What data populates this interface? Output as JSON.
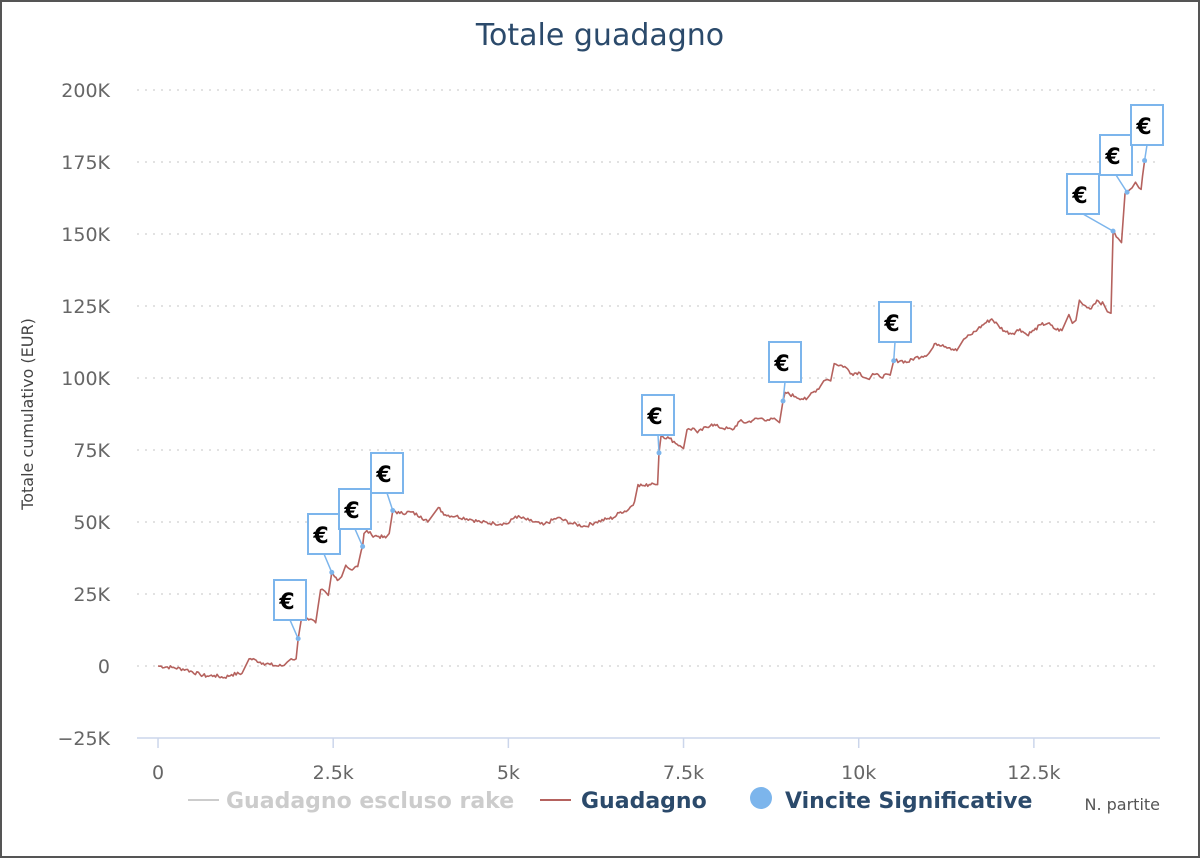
{
  "chart_data": {
    "type": "line",
    "title": "Totale guadagno",
    "xlabel": "N. partite",
    "ylabel": "Totale cumulativo (EUR)",
    "xlim": [
      -300,
      14300
    ],
    "ylim": [
      -25000,
      200000
    ],
    "x_ticks": [
      0,
      2500,
      5000,
      7500,
      10000,
      12500
    ],
    "x_tick_labels": [
      "0",
      "2.5k",
      "5k",
      "7.5k",
      "10k",
      "12.5k"
    ],
    "y_ticks": [
      -25000,
      0,
      25000,
      50000,
      75000,
      100000,
      125000,
      150000,
      175000,
      200000
    ],
    "y_tick_labels": [
      "−25K",
      "0",
      "25K",
      "50K",
      "75K",
      "100K",
      "125K",
      "150K",
      "175K",
      "200K"
    ],
    "grid": true,
    "legend_position": "bottom",
    "colors": {
      "guadagno": "#b5625e",
      "escluso_rake": "#cccccc",
      "vincite": "#7cb5ec",
      "title": "#2b4a6b",
      "legend_text": "#2b4a6b",
      "legend_hidden": "#cccccc"
    },
    "series": [
      {
        "name": "Guadagno escluso rake",
        "hidden": true,
        "points": []
      },
      {
        "name": "Guadagno",
        "points": [
          [
            0,
            0
          ],
          [
            200,
            -500
          ],
          [
            400,
            -1200
          ],
          [
            600,
            -3000
          ],
          [
            700,
            -3500
          ],
          [
            800,
            -3300
          ],
          [
            950,
            -4000
          ],
          [
            1050,
            -3000
          ],
          [
            1200,
            -2500
          ],
          [
            1250,
            0
          ],
          [
            1300,
            2500
          ],
          [
            1400,
            2000
          ],
          [
            1500,
            1000
          ],
          [
            1600,
            500
          ],
          [
            1700,
            0
          ],
          [
            1800,
            200
          ],
          [
            1850,
            1500
          ],
          [
            1900,
            2500
          ],
          [
            1970,
            2500
          ],
          [
            2000,
            9500
          ],
          [
            2050,
            17000
          ],
          [
            2150,
            16000
          ],
          [
            2250,
            15000
          ],
          [
            2280,
            20000
          ],
          [
            2320,
            26500
          ],
          [
            2380,
            26000
          ],
          [
            2430,
            24500
          ],
          [
            2480,
            32500
          ],
          [
            2520,
            31000
          ],
          [
            2580,
            30000
          ],
          [
            2620,
            31000
          ],
          [
            2680,
            35000
          ],
          [
            2750,
            33500
          ],
          [
            2850,
            34500
          ],
          [
            2900,
            40000
          ],
          [
            2920,
            41500
          ],
          [
            2940,
            46000
          ],
          [
            2980,
            47000
          ],
          [
            3050,
            45500
          ],
          [
            3150,
            45000
          ],
          [
            3250,
            44500
          ],
          [
            3300,
            46000
          ],
          [
            3350,
            54000
          ],
          [
            3450,
            53000
          ],
          [
            3600,
            53500
          ],
          [
            3750,
            52000
          ],
          [
            3850,
            50000
          ],
          [
            4000,
            55000
          ],
          [
            4100,
            52500
          ],
          [
            4250,
            52000
          ],
          [
            4450,
            51000
          ],
          [
            4600,
            50000
          ],
          [
            4800,
            49500
          ],
          [
            5000,
            49500
          ],
          [
            5100,
            52000
          ],
          [
            5300,
            50500
          ],
          [
            5500,
            49000
          ],
          [
            5700,
            51500
          ],
          [
            5900,
            49500
          ],
          [
            6100,
            48500
          ],
          [
            6250,
            50000
          ],
          [
            6400,
            51000
          ],
          [
            6500,
            51500
          ],
          [
            6600,
            53500
          ],
          [
            6700,
            54000
          ],
          [
            6800,
            57000
          ],
          [
            6850,
            63000
          ],
          [
            6950,
            62500
          ],
          [
            7050,
            63500
          ],
          [
            7100,
            63000
          ],
          [
            7130,
            63000
          ],
          [
            7150,
            74000
          ],
          [
            7180,
            80000
          ],
          [
            7300,
            79000
          ],
          [
            7450,
            76500
          ],
          [
            7500,
            75500
          ],
          [
            7550,
            82000
          ],
          [
            7650,
            82500
          ],
          [
            7700,
            81000
          ],
          [
            7900,
            84000
          ],
          [
            8000,
            83000
          ],
          [
            8200,
            82000
          ],
          [
            8300,
            85000
          ],
          [
            8400,
            84500
          ],
          [
            8500,
            85500
          ],
          [
            8600,
            86000
          ],
          [
            8700,
            85500
          ],
          [
            8820,
            85500
          ],
          [
            8870,
            84500
          ],
          [
            8920,
            92000
          ],
          [
            8950,
            95000
          ],
          [
            9100,
            93500
          ],
          [
            9250,
            92500
          ],
          [
            9300,
            94000
          ],
          [
            9450,
            97000
          ],
          [
            9500,
            99000
          ],
          [
            9550,
            99500
          ],
          [
            9600,
            99000
          ],
          [
            9650,
            105000
          ],
          [
            9800,
            104000
          ],
          [
            9900,
            101500
          ],
          [
            10000,
            102000
          ],
          [
            10100,
            100000
          ],
          [
            10150,
            99500
          ],
          [
            10200,
            101500
          ],
          [
            10300,
            100500
          ],
          [
            10450,
            101000
          ],
          [
            10500,
            106000
          ],
          [
            10600,
            106000
          ],
          [
            10700,
            105500
          ],
          [
            10800,
            107000
          ],
          [
            10900,
            107500
          ],
          [
            11000,
            108500
          ],
          [
            11100,
            112000
          ],
          [
            11200,
            111500
          ],
          [
            11300,
            110500
          ],
          [
            11400,
            109500
          ],
          [
            11500,
            113500
          ],
          [
            11600,
            115000
          ],
          [
            11700,
            117000
          ],
          [
            11800,
            119000
          ],
          [
            11900,
            120500
          ],
          [
            12000,
            118000
          ],
          [
            12100,
            116000
          ],
          [
            12200,
            115500
          ],
          [
            12300,
            117000
          ],
          [
            12400,
            115000
          ],
          [
            12500,
            116500
          ],
          [
            12600,
            118500
          ],
          [
            12700,
            119000
          ],
          [
            12800,
            117000
          ],
          [
            12900,
            116500
          ],
          [
            13000,
            122000
          ],
          [
            13050,
            119000
          ],
          [
            13100,
            120000
          ],
          [
            13150,
            127000
          ],
          [
            13200,
            125500
          ],
          [
            13300,
            124000
          ],
          [
            13400,
            127000
          ],
          [
            13500,
            125500
          ],
          [
            13550,
            123000
          ],
          [
            13600,
            122500
          ],
          [
            13630,
            151000
          ],
          [
            13700,
            148500
          ],
          [
            13750,
            147000
          ],
          [
            13800,
            164000
          ],
          [
            13850,
            165000
          ],
          [
            13900,
            166000
          ],
          [
            13950,
            168000
          ],
          [
            14000,
            166000
          ],
          [
            14030,
            165500
          ],
          [
            14050,
            170000
          ],
          [
            14080,
            175500
          ]
        ]
      },
      {
        "name": "Vincite Significative",
        "type": "flags",
        "points": [
          {
            "x": 2000,
            "y": 9500,
            "label": "€"
          },
          {
            "x": 2480,
            "y": 32500,
            "label": "€"
          },
          {
            "x": 2920,
            "y": 41500,
            "label": "€"
          },
          {
            "x": 3350,
            "y": 54000,
            "label": "€"
          },
          {
            "x": 7150,
            "y": 74000,
            "label": "€"
          },
          {
            "x": 8920,
            "y": 92000,
            "label": "€"
          },
          {
            "x": 10500,
            "y": 106000,
            "label": "€"
          },
          {
            "x": 13630,
            "y": 151000,
            "label": "€"
          },
          {
            "x": 13830,
            "y": 164500,
            "label": "€"
          },
          {
            "x": 14080,
            "y": 175500,
            "label": "€"
          }
        ]
      }
    ]
  }
}
